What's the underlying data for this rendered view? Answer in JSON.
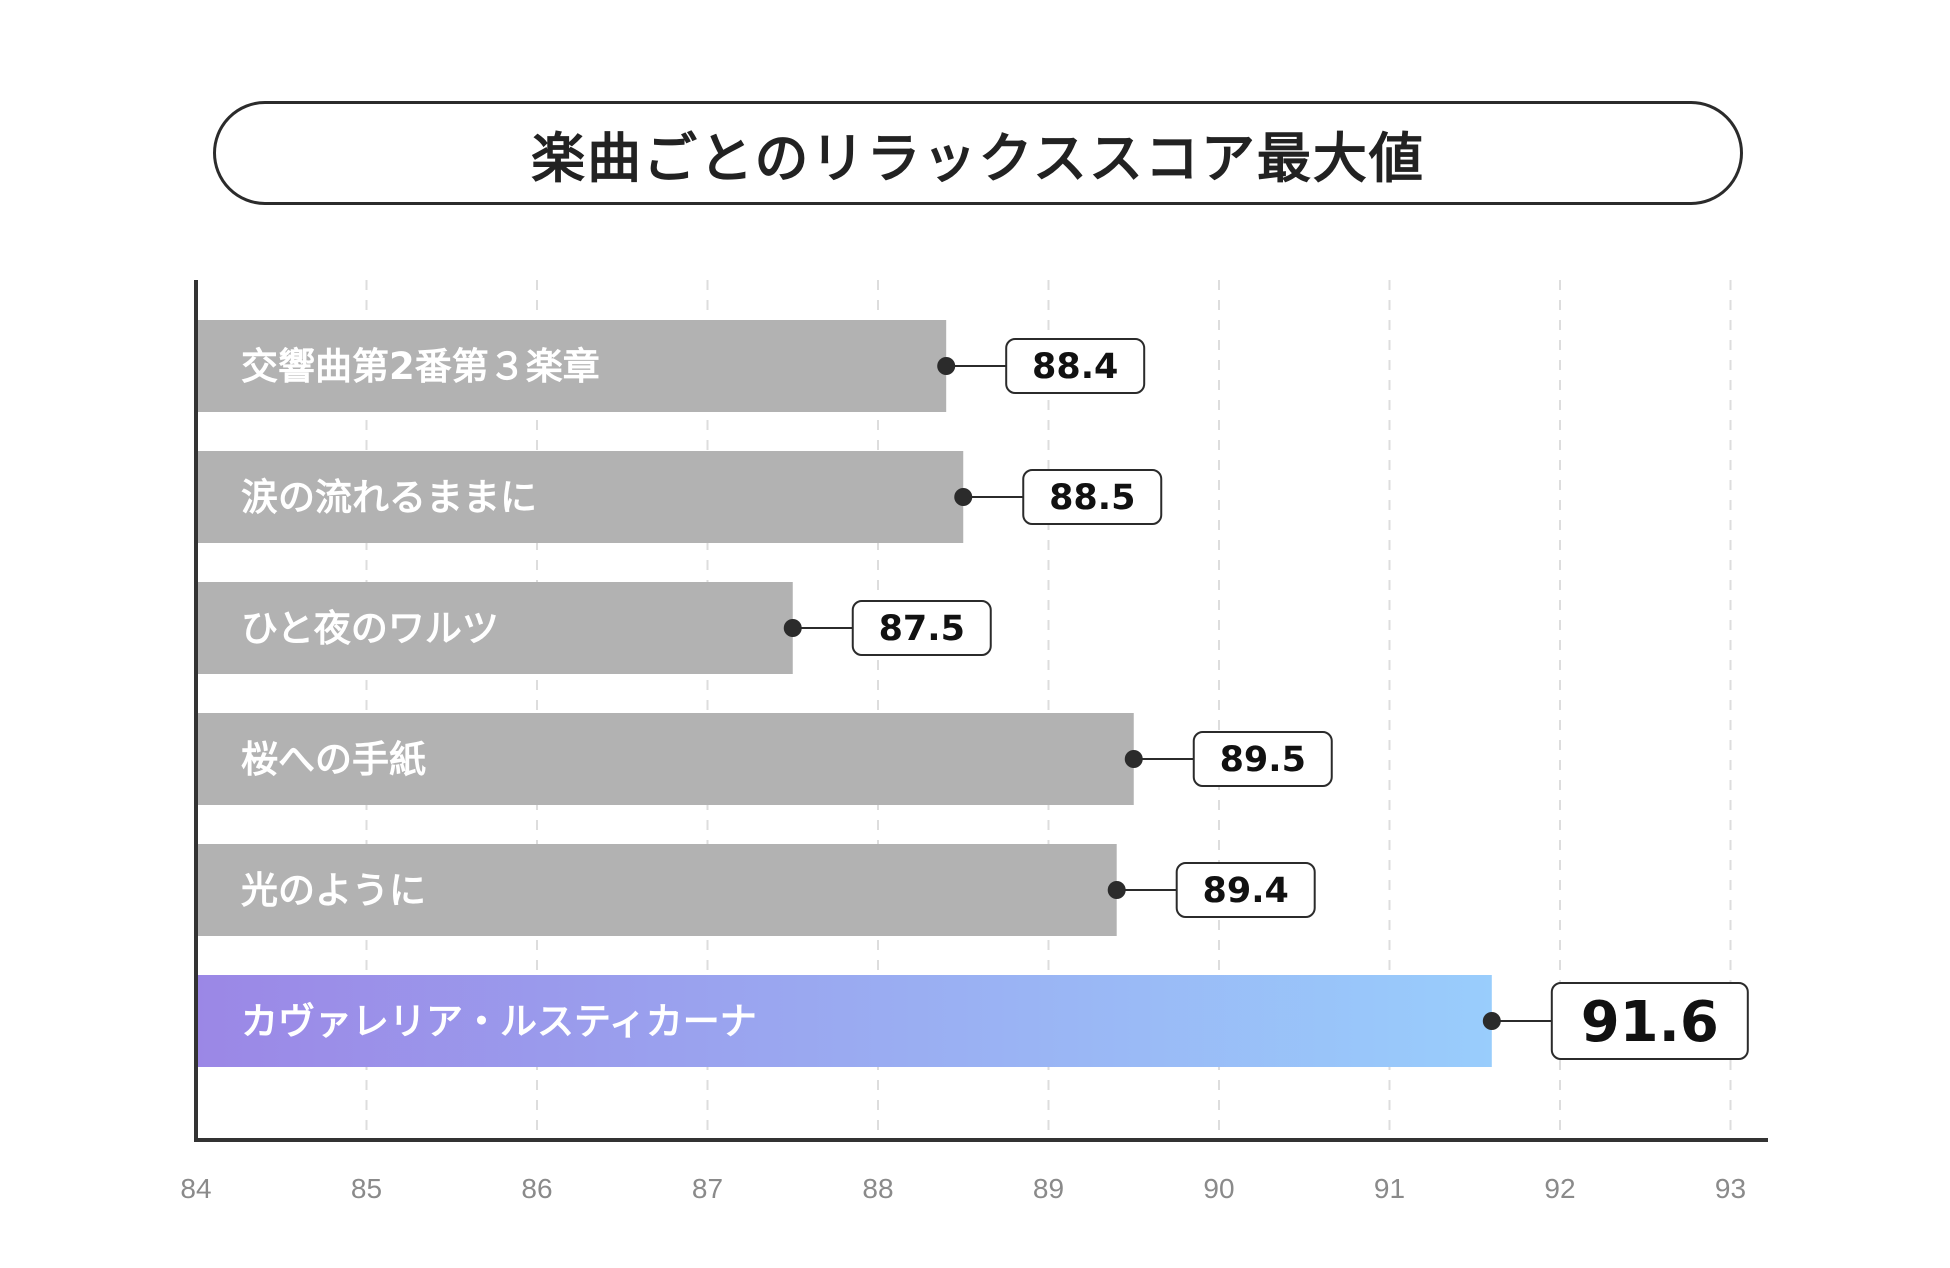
{
  "chart_data": {
    "type": "bar",
    "orientation": "horizontal",
    "title": "楽曲ごとのリラックススコア最大値",
    "categories": [
      "交響曲第2番第３楽章",
      "涙の流れるままに",
      "ひと夜のワルツ",
      "桜への手紙",
      "光のように",
      "カヴァレリア・ルスティカーナ"
    ],
    "values": [
      88.4,
      88.5,
      87.5,
      89.5,
      89.4,
      91.6
    ],
    "highlight_index": 5,
    "xlim": [
      84,
      93
    ],
    "xticks": [
      "84",
      "85",
      "86",
      "87",
      "88",
      "89",
      "90",
      "91",
      "92",
      "93"
    ],
    "grid": true,
    "xlabel": "",
    "ylabel": ""
  },
  "colors": {
    "bar": "#b2b2b2",
    "highlight_start": "#9b87e6",
    "highlight_end": "#99cdfc",
    "axis": "#333333",
    "grid": "#dddddd",
    "marker": "#2b2b2b"
  }
}
